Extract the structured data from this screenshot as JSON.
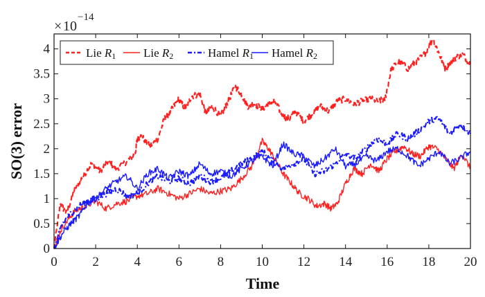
{
  "chart_data": {
    "type": "line",
    "title": "",
    "xlabel": "Time",
    "ylabel": "SO(3) error",
    "xlim": [
      0,
      20
    ],
    "ylim": [
      0,
      4.3
    ],
    "x_ticks": [
      "0",
      "2",
      "4",
      "6",
      "8",
      "10",
      "12",
      "14",
      "16",
      "18",
      "20"
    ],
    "y_ticks": [
      "0",
      "0.5",
      "1",
      "1.5",
      "2",
      "2.5",
      "3",
      "3.5",
      "4"
    ],
    "y_multiplier": {
      "base": "10",
      "exponent": "−14"
    },
    "grid": false,
    "legend_position": "top-left",
    "series": [
      {
        "name": "Lie R1",
        "label_main": "Lie ",
        "label_italic": "R",
        "label_sub": "1",
        "color": "#ff2020",
        "dash": "dashed",
        "x": [
          0,
          0.3,
          0.6,
          1,
          1.4,
          1.8,
          2.2,
          2.6,
          3,
          3.5,
          3.9,
          4,
          4.2,
          4.6,
          5,
          5.3,
          5.6,
          6,
          6.3,
          6.6,
          7,
          7.3,
          7.6,
          8,
          8.3,
          8.7,
          9,
          9.3,
          9.6,
          10,
          10.3,
          10.6,
          11,
          11.3,
          11.6,
          12,
          12.4,
          12.8,
          13.2,
          13.6,
          14,
          14.4,
          14.8,
          15.2,
          15.6,
          15.9,
          16.2,
          16.6,
          17,
          17.4,
          17.8,
          18.2,
          18.5,
          18.8,
          19.2,
          19.6,
          20
        ],
        "values": [
          0,
          0.9,
          0.7,
          1.2,
          1.45,
          1.7,
          1.55,
          1.75,
          1.6,
          1.75,
          1.9,
          2.2,
          2.25,
          2.05,
          2.2,
          2.6,
          2.75,
          3.0,
          2.8,
          3.05,
          3.1,
          2.7,
          2.85,
          2.65,
          2.9,
          3.25,
          3.1,
          2.85,
          2.9,
          2.8,
          2.9,
          2.95,
          2.65,
          2.6,
          2.75,
          2.55,
          2.7,
          2.85,
          2.75,
          2.95,
          3.0,
          2.9,
          2.95,
          3.0,
          2.95,
          3.0,
          3.6,
          3.75,
          3.6,
          3.75,
          3.9,
          4.2,
          3.9,
          3.6,
          3.8,
          3.9,
          3.7
        ]
      },
      {
        "name": "Lie R2",
        "label_main": "Lie ",
        "label_italic": "R",
        "label_sub": "2",
        "color": "#ff2020",
        "dash": "solid",
        "x": [
          0,
          0.3,
          0.7,
          1,
          1.5,
          2,
          2.5,
          3,
          3.5,
          4,
          4.5,
          5,
          5.5,
          6,
          6.5,
          7,
          7.5,
          8,
          8.5,
          9,
          9.5,
          10,
          10.3,
          10.6,
          11,
          11.4,
          11.8,
          12.2,
          12.6,
          13,
          13.3,
          13.6,
          14,
          14.4,
          14.8,
          15.2,
          15.6,
          16,
          16.4,
          16.8,
          17.2,
          17.6,
          18,
          18.4,
          18.8,
          19.2,
          19.6,
          20
        ],
        "values": [
          0,
          0.35,
          0.6,
          0.75,
          0.85,
          0.95,
          0.8,
          0.9,
          0.95,
          1.05,
          1.1,
          1.2,
          1.1,
          1.0,
          1.1,
          1.2,
          1.1,
          1.15,
          1.2,
          1.4,
          1.65,
          2.15,
          2.0,
          1.8,
          1.5,
          1.3,
          1.1,
          1.0,
          0.85,
          0.9,
          0.8,
          0.9,
          1.3,
          1.6,
          1.5,
          1.7,
          1.55,
          1.8,
          1.95,
          2.05,
          1.9,
          1.85,
          2.05,
          2.0,
          1.8,
          1.6,
          1.9,
          1.6
        ]
      },
      {
        "name": "Hamel R1",
        "label_main": "Hamel ",
        "label_italic": "R",
        "label_sub": "1",
        "color": "#1a1aff",
        "dash": "dashdot",
        "x": [
          0,
          0.4,
          0.8,
          1.2,
          1.6,
          2,
          2.5,
          3,
          3.5,
          4,
          4.5,
          5,
          5.5,
          6,
          6.5,
          7,
          7.5,
          8,
          8.5,
          9,
          9.5,
          10,
          10.5,
          11,
          11.5,
          12,
          12.5,
          13,
          13.5,
          14,
          14.5,
          15,
          15.5,
          16,
          16.5,
          17,
          17.5,
          18,
          18.5,
          19,
          19.5,
          20
        ],
        "values": [
          0,
          0.5,
          0.7,
          0.85,
          0.95,
          1.0,
          1.1,
          1.2,
          1.05,
          1.1,
          1.3,
          1.45,
          1.35,
          1.4,
          1.3,
          1.45,
          1.35,
          1.4,
          1.55,
          1.7,
          1.8,
          1.95,
          1.75,
          1.6,
          1.7,
          1.8,
          1.5,
          1.55,
          1.7,
          1.9,
          1.8,
          2.0,
          2.2,
          2.1,
          2.3,
          2.2,
          2.35,
          2.55,
          2.6,
          2.3,
          2.5,
          2.3
        ]
      },
      {
        "name": "Hamel R2",
        "label_main": "Hamel ",
        "label_italic": "R",
        "label_sub": "2",
        "color": "#1a1aff",
        "dash": "solid",
        "x": [
          0,
          0.4,
          0.8,
          1.2,
          1.6,
          2,
          2.5,
          3,
          3.5,
          4,
          4.5,
          5,
          5.5,
          6,
          6.5,
          7,
          7.5,
          8,
          8.5,
          9,
          9.5,
          10,
          10.5,
          11,
          11.5,
          12,
          12.5,
          13,
          13.5,
          14,
          14.5,
          15,
          15.5,
          16,
          16.5,
          17,
          17.5,
          18,
          18.5,
          19,
          19.5,
          20
        ],
        "values": [
          0,
          0.3,
          0.5,
          0.65,
          0.9,
          1.0,
          1.2,
          1.35,
          1.45,
          1.2,
          1.5,
          1.6,
          1.4,
          1.55,
          1.45,
          1.7,
          1.5,
          1.55,
          1.45,
          1.6,
          1.75,
          1.85,
          1.65,
          2.1,
          1.9,
          1.85,
          1.65,
          1.8,
          2.0,
          1.65,
          1.7,
          1.85,
          1.75,
          1.95,
          2.0,
          1.85,
          1.65,
          1.8,
          1.95,
          1.7,
          1.8,
          1.95
        ]
      }
    ]
  }
}
